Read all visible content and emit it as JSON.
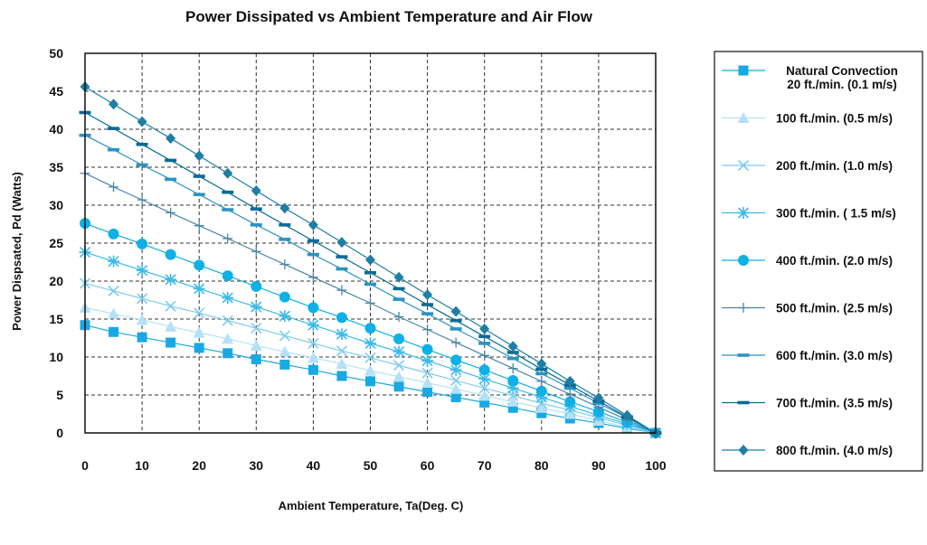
{
  "chart_data": {
    "type": "line",
    "title": "Power Dissipated vs Ambient Temperature and Air Flow",
    "xlabel": "Ambient Temperature, Ta(Deg. C)",
    "ylabel": "Power Dispsated, Pd (Watts)",
    "xlim": [
      0,
      100
    ],
    "ylim": [
      0,
      50
    ],
    "xticks": [
      0,
      10,
      20,
      30,
      40,
      50,
      60,
      70,
      80,
      90,
      100
    ],
    "yticks": [
      0,
      5,
      10,
      15,
      20,
      25,
      30,
      35,
      40,
      45,
      50
    ],
    "grid": true,
    "legend_position": "right",
    "x": [
      0,
      5,
      10,
      15,
      20,
      25,
      30,
      35,
      40,
      45,
      50,
      55,
      60,
      65,
      70,
      75,
      80,
      85,
      90,
      95,
      100
    ],
    "series": [
      {
        "name": "Natural Convection\n20 ft./min. (0.1 m/s)",
        "marker": "square",
        "color": "#19a9e2",
        "values": [
          14.2,
          13.3,
          12.6,
          11.9,
          11.2,
          10.5,
          9.7,
          9.0,
          8.3,
          7.5,
          6.8,
          6.1,
          5.4,
          4.7,
          4.0,
          3.3,
          2.6,
          1.9,
          1.3,
          0.6,
          0.0
        ]
      },
      {
        "name": "100 ft./min. (0.5 m/s)",
        "marker": "triangle",
        "color": "#b3e1f6",
        "values": [
          16.5,
          15.7,
          14.9,
          14.0,
          13.2,
          12.4,
          11.5,
          10.7,
          9.9,
          9.1,
          8.2,
          7.4,
          6.6,
          5.8,
          4.9,
          4.1,
          3.3,
          2.5,
          1.6,
          0.8,
          0.0
        ]
      },
      {
        "name": "200 ft./min. (1.0 m/s)",
        "marker": "x",
        "color": "#7ecbee",
        "values": [
          19.7,
          18.7,
          17.7,
          16.7,
          15.8,
          14.8,
          13.8,
          12.8,
          11.8,
          10.8,
          9.9,
          8.9,
          7.9,
          6.9,
          5.9,
          4.9,
          3.9,
          3.0,
          2.0,
          1.0,
          0.0
        ]
      },
      {
        "name": "300 ft./min. ( 1.5 m/s)",
        "marker": "asterisk",
        "color": "#3bbae9",
        "values": [
          23.8,
          22.6,
          21.4,
          20.2,
          19.0,
          17.8,
          16.6,
          15.4,
          14.2,
          13.0,
          11.8,
          10.7,
          9.5,
          8.3,
          7.1,
          5.9,
          4.7,
          3.5,
          2.3,
          1.2,
          0.0
        ]
      },
      {
        "name": "400 ft./min. (2.0 m/s)",
        "marker": "circle",
        "color": "#0fb0e6",
        "values": [
          27.6,
          26.2,
          24.9,
          23.5,
          22.1,
          20.7,
          19.3,
          17.9,
          16.5,
          15.2,
          13.8,
          12.4,
          11.0,
          9.6,
          8.3,
          6.9,
          5.5,
          4.1,
          2.8,
          1.4,
          0.0
        ]
      },
      {
        "name": "500 ft./min. (2.5 m/s)",
        "marker": "plus",
        "color": "#4a86a6",
        "values": [
          34.2,
          32.4,
          30.7,
          29.0,
          27.3,
          25.6,
          23.9,
          22.2,
          20.5,
          18.8,
          17.1,
          15.3,
          13.6,
          11.9,
          10.2,
          8.5,
          6.8,
          5.1,
          3.4,
          1.7,
          0.0
        ]
      },
      {
        "name": "600 ft./min. (3.0 m/s)",
        "marker": "dash",
        "color": "#2b93c4",
        "values": [
          39.2,
          37.3,
          35.3,
          33.4,
          31.4,
          29.4,
          27.4,
          25.5,
          23.5,
          21.6,
          19.6,
          17.6,
          15.7,
          13.7,
          11.8,
          9.8,
          7.8,
          5.9,
          3.9,
          2.0,
          0.0
        ]
      },
      {
        "name": "700 ft./min. (3.5 m/s)",
        "marker": "dash",
        "color": "#0a6b95",
        "values": [
          42.2,
          40.1,
          38.0,
          35.9,
          33.8,
          31.7,
          29.5,
          27.4,
          25.3,
          23.2,
          21.1,
          19.0,
          16.9,
          14.8,
          12.7,
          10.6,
          8.4,
          6.3,
          4.2,
          2.1,
          0.0
        ]
      },
      {
        "name": "800 ft./min. (4.0 m/s)",
        "marker": "diamond",
        "color": "#1e7ea3",
        "values": [
          45.6,
          43.3,
          41.0,
          38.8,
          36.5,
          34.2,
          31.9,
          29.6,
          27.4,
          25.1,
          22.8,
          20.5,
          18.2,
          16.0,
          13.7,
          11.4,
          9.1,
          6.8,
          4.6,
          2.3,
          0.0
        ]
      }
    ]
  }
}
